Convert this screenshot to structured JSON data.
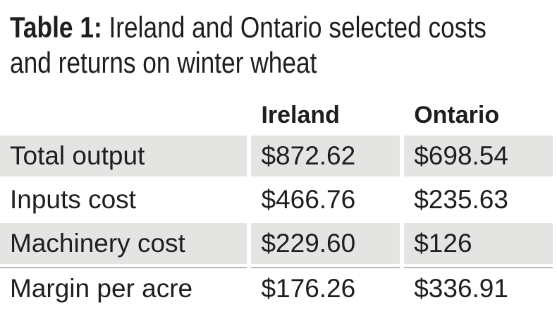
{
  "title": {
    "label": "Table 1:",
    "text": "Ireland and Ontario selected costs and returns on winter wheat"
  },
  "table": {
    "columns": [
      "Ireland",
      "Ontario"
    ],
    "rows": [
      [
        "Total output",
        "$872.62",
        "$698.54"
      ],
      [
        "Inputs cost",
        "$466.76",
        "$235.63"
      ],
      [
        "Machinery cost",
        "$229.60",
        "$126"
      ],
      [
        "Margin per acre",
        "$176.26",
        "$336.91"
      ]
    ]
  }
}
